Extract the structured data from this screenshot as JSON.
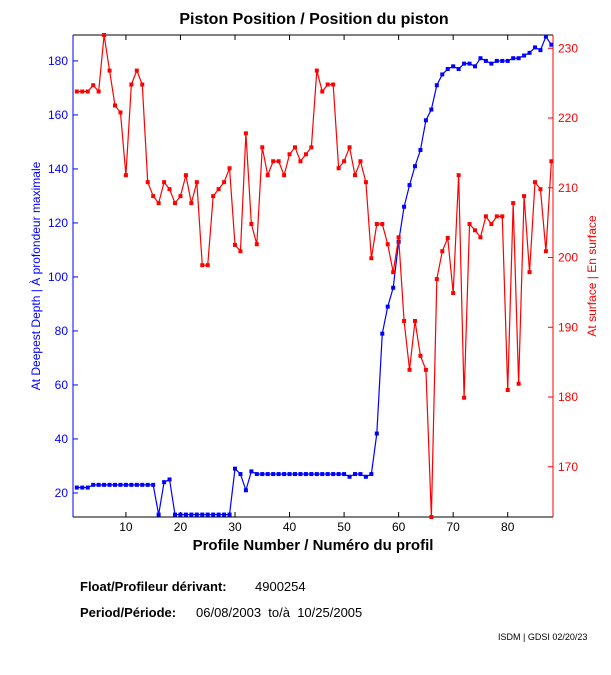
{
  "chart_data": {
    "type": "line",
    "title": "Piston Position / Position du piston",
    "xlabel": "Profile Number / Numéro du profil",
    "ylabel_left": "At Deepest Depth | À profondeur maximale",
    "ylabel_right": "At surface | En surface",
    "xlim": [
      0.3,
      88.3
    ],
    "ylim_left": [
      11.1,
      189.6
    ],
    "ylim_right": [
      162.8,
      231.9
    ],
    "xticks": [
      10,
      20,
      30,
      40,
      50,
      60,
      70,
      80
    ],
    "yticks_left": [
      20,
      40,
      60,
      80,
      100,
      120,
      140,
      160,
      180
    ],
    "yticks_right": [
      170,
      180,
      190,
      200,
      210,
      220,
      230
    ],
    "series": [
      {
        "name": "At Deepest Depth",
        "axis": "left",
        "color": "#0000ff",
        "values": [
          22,
          22,
          22,
          23,
          23,
          23,
          23,
          23,
          23,
          23,
          23,
          23,
          23,
          23,
          23,
          12,
          24,
          25,
          12,
          12,
          12,
          12,
          12,
          12,
          12,
          12,
          12,
          12,
          12,
          29,
          27,
          21,
          28,
          27,
          27,
          27,
          27,
          27,
          27,
          27,
          27,
          27,
          27,
          27,
          27,
          27,
          27,
          27,
          27,
          27,
          26,
          27,
          27,
          26,
          27,
          42,
          79,
          89,
          96,
          113,
          126,
          134,
          141,
          147,
          158,
          162,
          171,
          175,
          177,
          178,
          177,
          179,
          179,
          178,
          181,
          180,
          179,
          180,
          180,
          180,
          181,
          181,
          182,
          183,
          185,
          184,
          189,
          186
        ]
      },
      {
        "name": "At surface",
        "axis": "right",
        "color": "#ff0000",
        "values": [
          223.8,
          223.8,
          223.8,
          224.7,
          223.8,
          231.9,
          226.8,
          221.8,
          220.8,
          211.8,
          224.8,
          226.8,
          224.8,
          210.8,
          208.8,
          207.8,
          210.8,
          209.8,
          207.8,
          208.8,
          211.8,
          207.8,
          210.8,
          198.9,
          198.9,
          208.8,
          209.8,
          210.8,
          212.8,
          201.8,
          200.9,
          217.8,
          204.8,
          201.9,
          215.8,
          211.8,
          213.8,
          213.8,
          211.8,
          214.8,
          215.8,
          213.8,
          214.8,
          215.8,
          226.8,
          223.8,
          224.8,
          224.8,
          212.8,
          213.8,
          215.8,
          211.8,
          213.8,
          210.8,
          199.9,
          204.8,
          204.8,
          201.9,
          197.9,
          202.9,
          190.9,
          183.9,
          190.9,
          185.9,
          183.9,
          162.8,
          196.9,
          200.9,
          202.8,
          194.9,
          211.8,
          179.9,
          204.8,
          203.9,
          202.9,
          205.9,
          204.8,
          205.9,
          205.9,
          181.0,
          207.8,
          181.9,
          208.8,
          197.9,
          210.8,
          209.8,
          200.9,
          213.8
        ]
      }
    ]
  },
  "footer": {
    "float_label": "Float/Profileur dérivant:",
    "float_value": "4900254",
    "period_label": "Period/Période:",
    "period_value": "06/08/2003  to/à  10/25/2005",
    "credit": "ISDM | GDSI 02/20/23"
  }
}
